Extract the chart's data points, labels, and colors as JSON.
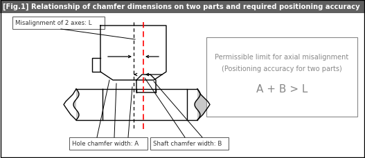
{
  "title": "[Fig.1] Relationship of chamfer dimensions on two parts and required positioning accuracy",
  "title_bg": "#606060",
  "title_fg": "#ffffff",
  "bg_color": "#ffffff",
  "label_misalignment": "Misalignment of 2 axes: L",
  "label_hole": "Hole chamfer width: A",
  "label_shaft": "Shaft chamfer width: B",
  "box_line1": "Permissible limit for axial misalignment",
  "box_line2": "(Positioning accuracy for two parts)",
  "box_line3": "A + B > L",
  "gray_color": "#c8c8c8",
  "text_gray": "#888888"
}
